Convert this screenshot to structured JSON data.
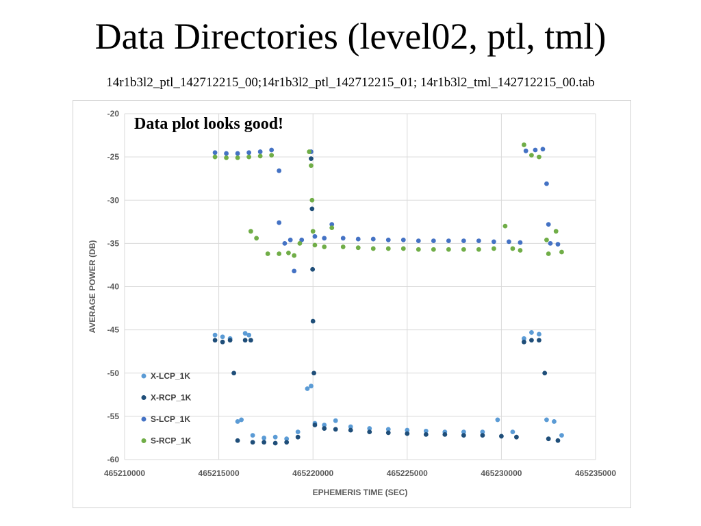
{
  "slide": {
    "title": "Data Directories (level02, ptl, tml)",
    "subtitle": "14r1b3l2_ptl_142712215_00;14r1b3l2_ptl_142712215_01; 14r1b3l2_tml_142712215_00.tab"
  },
  "chart_data": {
    "type": "scatter",
    "annotation": "Data plot looks good!",
    "xlabel": "EPHEMERIS TIME (SEC)",
    "ylabel": "AVERAGE POWER (DB)",
    "xlim": [
      465210000,
      465235000
    ],
    "ylim": [
      -60,
      -20
    ],
    "x_ticks": [
      "465210000",
      "465215000",
      "465220000",
      "465225000",
      "465230000",
      "465235000"
    ],
    "y_ticks": [
      "-20",
      "-25",
      "-30",
      "-35",
      "-40",
      "-45",
      "-50",
      "-55",
      "-60"
    ],
    "grid": true,
    "legend_position": "bottom-left",
    "series": [
      {
        "name": "X-LCP_1K",
        "color": "#5b9bd5",
        "points": [
          [
            465214800,
            -45.6
          ],
          [
            465215200,
            -45.8
          ],
          [
            465215600,
            -46.0
          ],
          [
            465216000,
            -55.6
          ],
          [
            465216200,
            -55.4
          ],
          [
            465216400,
            -45.4
          ],
          [
            465216600,
            -45.6
          ],
          [
            465216800,
            -57.2
          ],
          [
            465217400,
            -57.5
          ],
          [
            465218000,
            -57.4
          ],
          [
            465218600,
            -57.6
          ],
          [
            465219200,
            -56.8
          ],
          [
            465219700,
            -51.8
          ],
          [
            465219900,
            -51.5
          ],
          [
            465220100,
            -55.8
          ],
          [
            465220600,
            -56.0
          ],
          [
            465221200,
            -55.5
          ],
          [
            465222000,
            -56.2
          ],
          [
            465223000,
            -56.4
          ],
          [
            465224000,
            -56.5
          ],
          [
            465225000,
            -56.6
          ],
          [
            465226000,
            -56.7
          ],
          [
            465227000,
            -56.8
          ],
          [
            465228000,
            -56.8
          ],
          [
            465229000,
            -56.8
          ],
          [
            465229800,
            -55.4
          ],
          [
            465230600,
            -56.8
          ],
          [
            465231200,
            -46.0
          ],
          [
            465231600,
            -45.3
          ],
          [
            465232000,
            -45.5
          ],
          [
            465232400,
            -55.4
          ],
          [
            465232800,
            -55.6
          ],
          [
            465233200,
            -57.2
          ]
        ]
      },
      {
        "name": "X-RCP_1K",
        "color": "#1f4e79",
        "points": [
          [
            465214800,
            -46.2
          ],
          [
            465215200,
            -46.4
          ],
          [
            465215600,
            -46.2
          ],
          [
            465215800,
            -50.0
          ],
          [
            465216000,
            -57.8
          ],
          [
            465216400,
            -46.2
          ],
          [
            465216700,
            -46.2
          ],
          [
            465216800,
            -58.0
          ],
          [
            465217400,
            -58.0
          ],
          [
            465218000,
            -58.1
          ],
          [
            465218600,
            -58.0
          ],
          [
            465219200,
            -57.4
          ],
          [
            465219900,
            -25.2
          ],
          [
            465219950,
            -31.0
          ],
          [
            465219980,
            -38.0
          ],
          [
            465220000,
            -44.0
          ],
          [
            465220050,
            -50.0
          ],
          [
            465220100,
            -56.0
          ],
          [
            465220600,
            -56.4
          ],
          [
            465221200,
            -56.5
          ],
          [
            465222000,
            -56.6
          ],
          [
            465223000,
            -56.8
          ],
          [
            465224000,
            -56.9
          ],
          [
            465225000,
            -57.0
          ],
          [
            465226000,
            -57.1
          ],
          [
            465227000,
            -57.1
          ],
          [
            465228000,
            -57.2
          ],
          [
            465229000,
            -57.2
          ],
          [
            465230000,
            -57.3
          ],
          [
            465230800,
            -57.4
          ],
          [
            465231200,
            -46.4
          ],
          [
            465231600,
            -46.2
          ],
          [
            465232000,
            -46.2
          ],
          [
            465232300,
            -50.0
          ],
          [
            465232500,
            -57.6
          ],
          [
            465233000,
            -57.8
          ]
        ]
      },
      {
        "name": "S-LCP_1K",
        "color": "#4472c4",
        "points": [
          [
            465214800,
            -24.5
          ],
          [
            465215400,
            -24.6
          ],
          [
            465216000,
            -24.6
          ],
          [
            465216600,
            -24.5
          ],
          [
            465217200,
            -24.4
          ],
          [
            465217800,
            -24.2
          ],
          [
            465218200,
            -26.6
          ],
          [
            465218200,
            -32.6
          ],
          [
            465218500,
            -35.0
          ],
          [
            465218800,
            -34.6
          ],
          [
            465219000,
            -38.2
          ],
          [
            465219400,
            -34.6
          ],
          [
            465219900,
            -24.4
          ],
          [
            465220100,
            -34.2
          ],
          [
            465220600,
            -34.4
          ],
          [
            465221000,
            -32.8
          ],
          [
            465221600,
            -34.4
          ],
          [
            465222400,
            -34.5
          ],
          [
            465223200,
            -34.5
          ],
          [
            465224000,
            -34.6
          ],
          [
            465224800,
            -34.6
          ],
          [
            465225600,
            -34.7
          ],
          [
            465226400,
            -34.7
          ],
          [
            465227200,
            -34.7
          ],
          [
            465228000,
            -34.7
          ],
          [
            465228800,
            -34.7
          ],
          [
            465229600,
            -34.8
          ],
          [
            465230400,
            -34.8
          ],
          [
            465231000,
            -34.9
          ],
          [
            465231300,
            -24.3
          ],
          [
            465231800,
            -24.2
          ],
          [
            465232200,
            -24.1
          ],
          [
            465232400,
            -28.1
          ],
          [
            465232500,
            -32.8
          ],
          [
            465232600,
            -35.0
          ],
          [
            465233000,
            -35.1
          ]
        ]
      },
      {
        "name": "S-RCP_1K",
        "color": "#70ad47",
        "points": [
          [
            465214800,
            -25.0
          ],
          [
            465215400,
            -25.1
          ],
          [
            465216000,
            -25.1
          ],
          [
            465216600,
            -25.0
          ],
          [
            465217200,
            -24.9
          ],
          [
            465217800,
            -24.8
          ],
          [
            465216700,
            -33.6
          ],
          [
            465217000,
            -34.4
          ],
          [
            465217600,
            -36.2
          ],
          [
            465218200,
            -36.2
          ],
          [
            465218700,
            -36.1
          ],
          [
            465219000,
            -36.4
          ],
          [
            465219300,
            -35.0
          ],
          [
            465219800,
            -24.4
          ],
          [
            465219900,
            -26.0
          ],
          [
            465219950,
            -30.0
          ],
          [
            465220000,
            -33.6
          ],
          [
            465220100,
            -35.2
          ],
          [
            465220600,
            -35.4
          ],
          [
            465221000,
            -33.2
          ],
          [
            465221600,
            -35.4
          ],
          [
            465222400,
            -35.5
          ],
          [
            465223200,
            -35.6
          ],
          [
            465224000,
            -35.6
          ],
          [
            465224800,
            -35.6
          ],
          [
            465225600,
            -35.7
          ],
          [
            465226400,
            -35.7
          ],
          [
            465227200,
            -35.7
          ],
          [
            465228000,
            -35.7
          ],
          [
            465228800,
            -35.7
          ],
          [
            465229600,
            -35.6
          ],
          [
            465230200,
            -33.0
          ],
          [
            465230600,
            -35.6
          ],
          [
            465231000,
            -35.8
          ],
          [
            465231200,
            -23.6
          ],
          [
            465231600,
            -24.8
          ],
          [
            465232000,
            -25.0
          ],
          [
            465232400,
            -34.6
          ],
          [
            465232500,
            -36.2
          ],
          [
            465232900,
            -33.6
          ],
          [
            465233200,
            -36.0
          ]
        ]
      }
    ]
  }
}
